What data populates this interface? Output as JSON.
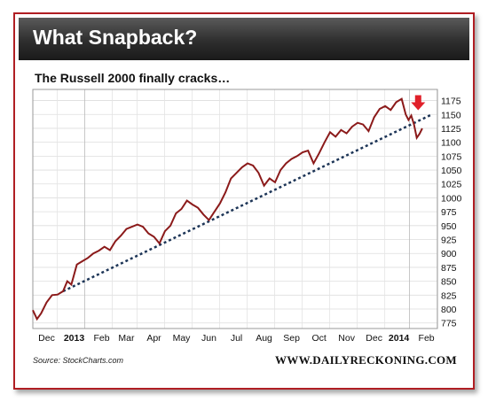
{
  "banner_title": "What Snapback?",
  "subtitle": "The Russell 2000 finally cracks…",
  "source": "Source: StockCharts.com",
  "site": "WWW.DAILYRECKONING.COM",
  "colors": {
    "frame": "#b01e23",
    "series": "#8b1a1a",
    "trend": "#1d3557",
    "arrow": "#e0202a"
  },
  "chart_data": {
    "type": "line",
    "title": "What Snapback?",
    "subtitle": "The Russell 2000 finally cracks…",
    "ylim": [
      765,
      1195
    ],
    "y_ticks": [
      775,
      800,
      825,
      850,
      875,
      900,
      925,
      950,
      975,
      1000,
      1025,
      1050,
      1075,
      1100,
      1125,
      1150,
      1175
    ],
    "x_ticks": [
      {
        "label": "Dec",
        "x": 0.8,
        "bold": false
      },
      {
        "label": "2013",
        "x": 1.8,
        "bold": true
      },
      {
        "label": "Feb",
        "x": 2.8,
        "bold": false
      },
      {
        "label": "Mar",
        "x": 3.7,
        "bold": false
      },
      {
        "label": "Apr",
        "x": 4.7,
        "bold": false
      },
      {
        "label": "May",
        "x": 5.7,
        "bold": false
      },
      {
        "label": "Jun",
        "x": 6.7,
        "bold": false
      },
      {
        "label": "Jul",
        "x": 7.7,
        "bold": false
      },
      {
        "label": "Aug",
        "x": 8.7,
        "bold": false
      },
      {
        "label": "Sep",
        "x": 9.7,
        "bold": false
      },
      {
        "label": "Oct",
        "x": 10.7,
        "bold": false
      },
      {
        "label": "Nov",
        "x": 11.7,
        "bold": false
      },
      {
        "label": "Dec",
        "x": 12.7,
        "bold": false
      },
      {
        "label": "2014",
        "x": 13.6,
        "bold": true
      },
      {
        "label": "Feb",
        "x": 14.6,
        "bold": false
      }
    ],
    "xlim": [
      0.3,
      15.0
    ],
    "grid": true,
    "series": [
      {
        "values": [
          [
            0.3,
            798
          ],
          [
            0.45,
            782
          ],
          [
            0.6,
            792
          ],
          [
            0.8,
            812
          ],
          [
            1.0,
            825
          ],
          [
            1.2,
            826
          ],
          [
            1.4,
            832
          ],
          [
            1.55,
            850
          ],
          [
            1.7,
            844
          ],
          [
            1.9,
            880
          ],
          [
            2.1,
            886
          ],
          [
            2.3,
            892
          ],
          [
            2.5,
            900
          ],
          [
            2.7,
            905
          ],
          [
            2.9,
            912
          ],
          [
            3.1,
            906
          ],
          [
            3.3,
            922
          ],
          [
            3.5,
            932
          ],
          [
            3.7,
            944
          ],
          [
            3.9,
            948
          ],
          [
            4.1,
            952
          ],
          [
            4.3,
            948
          ],
          [
            4.5,
            936
          ],
          [
            4.7,
            930
          ],
          [
            4.9,
            918
          ],
          [
            5.1,
            940
          ],
          [
            5.3,
            950
          ],
          [
            5.5,
            972
          ],
          [
            5.7,
            980
          ],
          [
            5.9,
            995
          ],
          [
            6.1,
            988
          ],
          [
            6.3,
            982
          ],
          [
            6.5,
            970
          ],
          [
            6.7,
            960
          ],
          [
            6.9,
            975
          ],
          [
            7.1,
            990
          ],
          [
            7.3,
            1010
          ],
          [
            7.5,
            1035
          ],
          [
            7.7,
            1045
          ],
          [
            7.9,
            1055
          ],
          [
            8.1,
            1062
          ],
          [
            8.3,
            1058
          ],
          [
            8.5,
            1045
          ],
          [
            8.7,
            1022
          ],
          [
            8.9,
            1035
          ],
          [
            9.1,
            1028
          ],
          [
            9.3,
            1050
          ],
          [
            9.5,
            1062
          ],
          [
            9.7,
            1070
          ],
          [
            9.9,
            1075
          ],
          [
            10.1,
            1082
          ],
          [
            10.3,
            1085
          ],
          [
            10.5,
            1062
          ],
          [
            10.7,
            1080
          ],
          [
            10.9,
            1100
          ],
          [
            11.1,
            1118
          ],
          [
            11.3,
            1110
          ],
          [
            11.5,
            1122
          ],
          [
            11.7,
            1116
          ],
          [
            11.9,
            1128
          ],
          [
            12.1,
            1135
          ],
          [
            12.3,
            1132
          ],
          [
            12.5,
            1120
          ],
          [
            12.7,
            1145
          ],
          [
            12.9,
            1160
          ],
          [
            13.1,
            1165
          ],
          [
            13.3,
            1158
          ],
          [
            13.5,
            1172
          ],
          [
            13.7,
            1178
          ],
          [
            13.85,
            1150
          ],
          [
            13.95,
            1140
          ],
          [
            14.05,
            1148
          ],
          [
            14.15,
            1132
          ],
          [
            14.25,
            1108
          ],
          [
            14.35,
            1115
          ],
          [
            14.45,
            1125
          ]
        ]
      }
    ],
    "trendline": [
      [
        1.4,
        832
      ],
      [
        14.8,
        1150
      ]
    ],
    "annotation": {
      "type": "down-arrow",
      "x": 14.3,
      "y": 1172
    }
  }
}
